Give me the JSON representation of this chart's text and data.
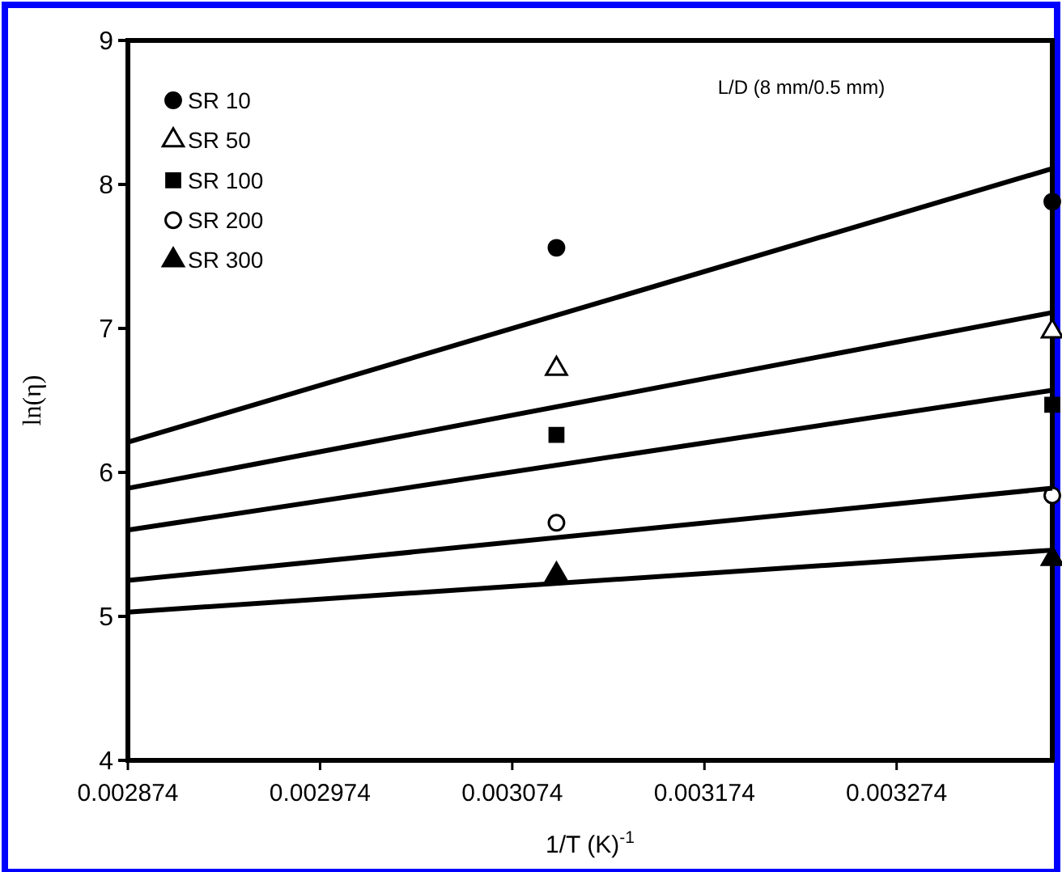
{
  "chart_data": {
    "type": "scatter",
    "xlabel": "1/T (K)$^{-1}$",
    "ylabel": "ln(η)",
    "annotations": [
      "L/D (8 mm/0.5 mm)"
    ],
    "xlim": [
      0.002874,
      0.003355
    ],
    "xticks": [
      0.002874,
      0.002974,
      0.003074,
      0.003174,
      0.003274
    ],
    "ylim": [
      4,
      9
    ],
    "yticks": [
      4,
      5,
      6,
      7,
      8,
      9
    ],
    "grid": false,
    "legend": "top left",
    "series": [
      {
        "name": "SR 10",
        "color": "#000000",
        "marker": "circle",
        "x": [
          0.003097,
          0.003355
        ],
        "values": [
          7.56,
          7.88
        ]
      },
      {
        "name": "SR 50",
        "color": "#ffffff",
        "marker": "triangle",
        "x": [
          0.003097,
          0.003355
        ],
        "values": [
          6.72,
          6.98
        ]
      },
      {
        "name": "SR 100",
        "color": "#000000",
        "marker": "square",
        "x": [
          0.003097,
          0.003355
        ],
        "values": [
          6.26,
          6.47
        ]
      },
      {
        "name": "SR 200",
        "color": "#ffffff",
        "marker": "circle",
        "x": [
          0.003097,
          0.003355
        ],
        "values": [
          5.65,
          5.84
        ]
      },
      {
        "name": "SR 300",
        "color": "#000000",
        "marker": "triangle",
        "x": [
          0.003097,
          0.003355
        ],
        "values": [
          5.29,
          5.4
        ]
      },
      {
        "type": "line",
        "color": "#000000",
        "x": [
          0.002874,
          0.003355
        ],
        "values": [
          6.21,
          8.11
        ]
      },
      {
        "type": "line",
        "color": "#000000",
        "x": [
          0.002874,
          0.003355
        ],
        "values": [
          5.89,
          7.11
        ]
      },
      {
        "type": "line",
        "color": "#000000",
        "x": [
          0.002874,
          0.003355
        ],
        "values": [
          5.6,
          6.57
        ]
      },
      {
        "type": "line",
        "color": "#000000",
        "x": [
          0.002874,
          0.003355
        ],
        "values": [
          5.25,
          5.89
        ]
      },
      {
        "type": "line",
        "color": "#000000",
        "x": [
          0.002874,
          0.003355
        ],
        "values": [
          5.03,
          5.46
        ]
      }
    ]
  }
}
